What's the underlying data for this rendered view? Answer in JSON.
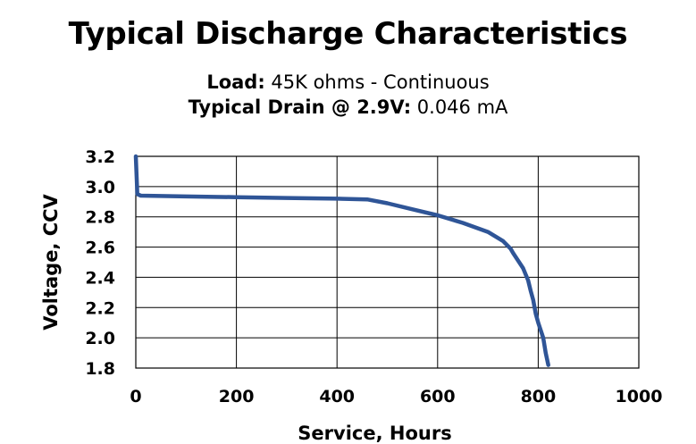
{
  "chart_data": {
    "type": "line",
    "title": "Typical Discharge Characteristics",
    "subtitle_1": {
      "label": "Load:",
      "value": " 45K ohms - Continuous"
    },
    "subtitle_2": {
      "label": "Typical Drain @ 2.9V:",
      "value": " 0.046 mA"
    },
    "xlabel": "Service, Hours",
    "ylabel": "Voltage, CCV",
    "xlim": [
      0,
      1000
    ],
    "ylim": [
      1.8,
      3.2
    ],
    "x_ticks": [
      "0",
      "200",
      "400",
      "600",
      "800",
      "1000"
    ],
    "y_ticks": [
      "3.2",
      "3.0",
      "2.8",
      "2.6",
      "2.4",
      "2.2",
      "2.0",
      "1.8"
    ],
    "grid": true,
    "line_color": "#2f5597",
    "series": [
      {
        "x": [
          0,
          3,
          10,
          100,
          200,
          300,
          400,
          460,
          500,
          550,
          600,
          650,
          700,
          730,
          745,
          750,
          760,
          770,
          780,
          785,
          790,
          795,
          800,
          810,
          815,
          820
        ],
        "y": [
          3.2,
          2.95,
          2.94,
          2.935,
          2.93,
          2.925,
          2.92,
          2.915,
          2.89,
          2.85,
          2.81,
          2.76,
          2.7,
          2.64,
          2.59,
          2.56,
          2.51,
          2.46,
          2.38,
          2.31,
          2.25,
          2.16,
          2.1,
          2.0,
          1.9,
          1.82
        ]
      }
    ]
  }
}
